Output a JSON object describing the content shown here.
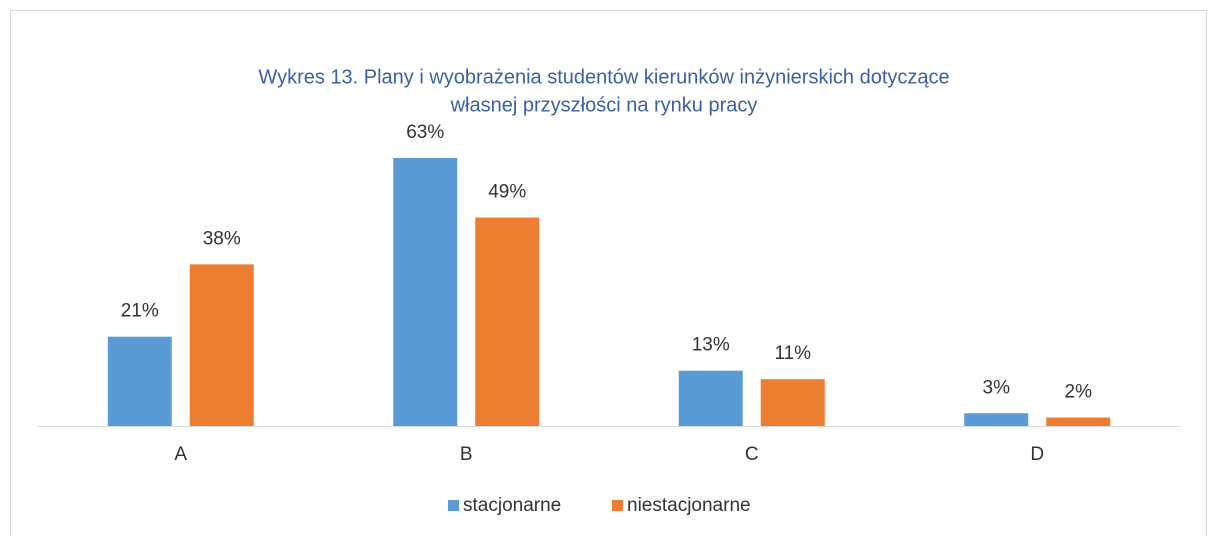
{
  "chart_data": {
    "type": "bar",
    "title": [
      "Wykres 13. Plany i wyobrażenia studentów kierunków inżynierskich dotyczące",
      "własnej przyszłości na rynku pracy"
    ],
    "categories": [
      "A",
      "B",
      "C",
      "D"
    ],
    "series": [
      {
        "name": "stacjonarne",
        "color": "#5b9bd5",
        "values": [
          21,
          63,
          13,
          3
        ],
        "value_labels": [
          "21%",
          "63%",
          "13%",
          "3%"
        ]
      },
      {
        "name": "niestacjonarne",
        "color": "#ed7d31",
        "values": [
          38,
          49,
          11,
          2
        ],
        "value_labels": [
          "38%",
          "49%",
          "11%",
          "2%"
        ]
      }
    ],
    "legend": "bottom"
  }
}
